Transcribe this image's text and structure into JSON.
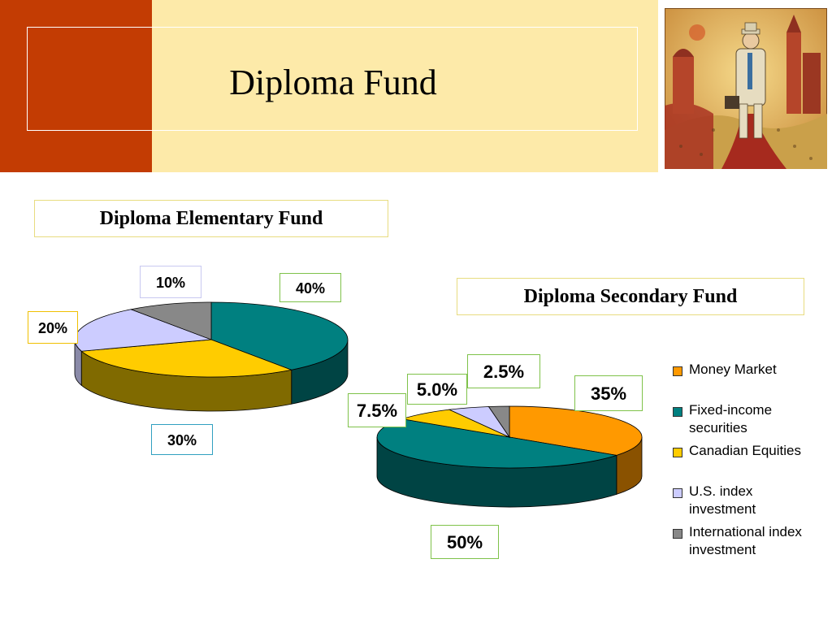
{
  "slide": {
    "title": "Diploma Fund"
  },
  "legend": {
    "items": [
      {
        "label": "Money Market",
        "color": "#ff9900"
      },
      {
        "label": "Fixed-income securities",
        "color": "#008080"
      },
      {
        "label": "Canadian Equities",
        "color": "#ffcc00"
      },
      {
        "label": "U.S. index investment",
        "color": "#ccccff"
      },
      {
        "label": "International index investment",
        "color": "#888888"
      }
    ]
  },
  "chart_data": [
    {
      "type": "pie",
      "title": "Diploma Elementary Fund",
      "categories": [
        "Money Market",
        "Fixed-income securities",
        "Canadian Equities",
        "U.S. index investment",
        "International index investment"
      ],
      "values": [
        0,
        40,
        30,
        20,
        10
      ],
      "labels": [
        "",
        "40%",
        "30%",
        "20%",
        "10%"
      ],
      "legend": "shared"
    },
    {
      "type": "pie",
      "title": "Diploma Secondary Fund",
      "categories": [
        "Money Market",
        "Fixed-income securities",
        "Canadian Equities",
        "U.S. index investment",
        "International index investment"
      ],
      "values": [
        35,
        50,
        7.5,
        5.0,
        2.5
      ],
      "labels": [
        "35%",
        "50%",
        "7.5%",
        "5.0%",
        "2.5%"
      ],
      "legend": "right"
    }
  ]
}
